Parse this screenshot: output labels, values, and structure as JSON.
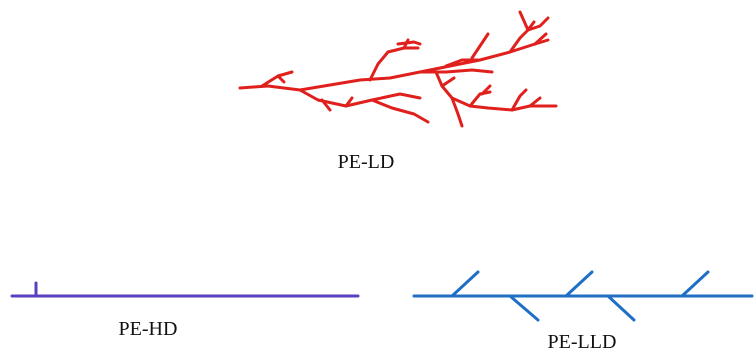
{
  "labels": {
    "ld": "PE-LD",
    "hd": "PE-HD",
    "lld": "PE-LLD"
  },
  "colors": {
    "ld": "#e0201c",
    "hd": "#5a3fc0",
    "lld": "#1f6fc4"
  },
  "structures": [
    {
      "name": "PE-LD",
      "type": "highly branched (long and short branches)"
    },
    {
      "name": "PE-HD",
      "type": "linear with rare short branch"
    },
    {
      "name": "PE-LLD",
      "type": "linear with regular short branches"
    }
  ]
}
